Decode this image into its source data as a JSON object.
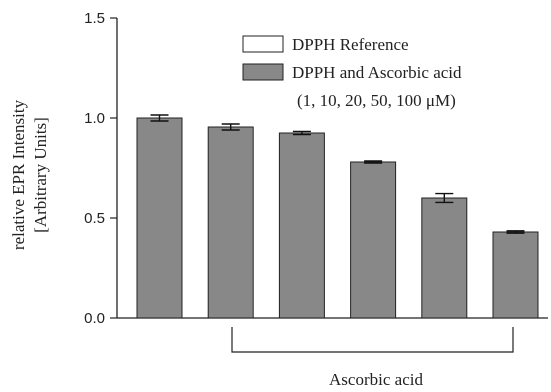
{
  "chart_data": {
    "type": "bar",
    "title": "",
    "ylabel_line1": "relative EPR Intensity",
    "ylabel_line2": "[Arbitrary Units]",
    "xlabel": "",
    "ylim": [
      0,
      1.5
    ],
    "yticks": [
      "0.0",
      "0.5",
      "1.0",
      "1.5"
    ],
    "ytick_values": [
      0,
      0.5,
      1.0,
      1.5
    ],
    "grid": false,
    "legend_position": "top-right",
    "legend": [
      {
        "label": "DPPH Reference",
        "fill": "#ffffff"
      },
      {
        "label": "DPPH and Ascorbic acid",
        "fill": "#888888"
      }
    ],
    "legend_sub": "(1, 10, 20, 50, 100 μM)",
    "bracket_label": "Ascorbic acid",
    "series": [
      {
        "values": [
          1.0,
          0.955,
          0.925,
          0.78,
          0.6,
          0.43
        ],
        "errors": [
          0.015,
          0.015,
          0.008,
          0.005,
          0.022,
          0.006
        ]
      }
    ],
    "bar_color": "#888888"
  }
}
